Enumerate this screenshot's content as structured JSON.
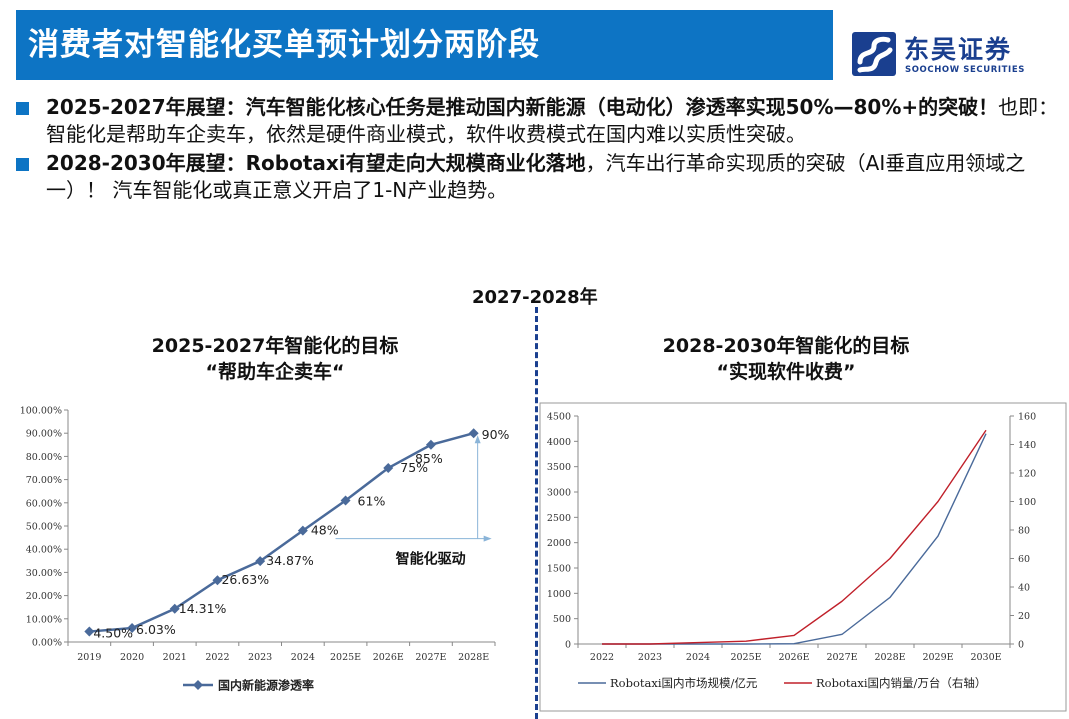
{
  "header": {
    "title": "消费者对智能化买单预计划分两阶段"
  },
  "logo": {
    "cn": "东吴证券",
    "en": "SOOCHOW SECURITIES"
  },
  "bullets": [
    {
      "bold": "2025-2027年展望：汽车智能化核心任务是推动国内新能源（电动化）渗透率实现50%—80%+的突破！",
      "text": "也即：智能化是帮助车企卖车，依然是硬件商业模式，软件收费模式在国内难以实质性突破。"
    },
    {
      "bold": "2028-2030年展望：Robotaxi有望走向大规模商业化落地",
      "text": "，汽车出行革命实现质的突破（AI垂直应用领域之一）！ 汽车智能化或真正意义开启了1-N产业趋势。"
    }
  ],
  "divider_label": "2027-2028年",
  "left_panel": {
    "title_line1": "2025-2027年智能化的目标",
    "title_line2": "“帮助车企卖车“"
  },
  "right_panel": {
    "title_line1": "2028-2030年智能化的目标",
    "title_line2": "“实现软件收费”"
  },
  "chart_data": [
    {
      "type": "line",
      "x": [
        "2019",
        "2020",
        "2021",
        "2022",
        "2023",
        "2024",
        "2025E",
        "2026E",
        "2027E",
        "2028E"
      ],
      "series": [
        {
          "name": "国内新能源渗透率",
          "values": [
            4.5,
            6.03,
            14.31,
            26.63,
            34.87,
            48,
            61,
            75,
            85,
            90
          ],
          "color": "#4a6a9a"
        }
      ],
      "data_labels": [
        "4.50%",
        "6.03%",
        "14.31%",
        "26.63%",
        "34.87%",
        "48%",
        "61%",
        "75%",
        "85%",
        "90%"
      ],
      "y_ticks": [
        "0.00%",
        "10.00%",
        "20.00%",
        "30.00%",
        "40.00%",
        "50.00%",
        "60.00%",
        "70.00%",
        "80.00%",
        "90.00%",
        "100.00%"
      ],
      "ylim": [
        0,
        100
      ],
      "annotation": "智能化驱动",
      "legend": "bottom",
      "grid": false
    },
    {
      "type": "line",
      "x": [
        "2022",
        "2023",
        "2024",
        "2025E",
        "2026E",
        "2027E",
        "2028E",
        "2029E",
        "2030E"
      ],
      "series": [
        {
          "name": "Robotaxi国内市场规模/亿元",
          "axis": "left",
          "values": [
            0,
            0,
            0,
            0,
            5,
            190,
            920,
            2130,
            4150
          ],
          "color": "#4a6a9a"
        },
        {
          "name": "Robotaxi国内销量/万台（右轴）",
          "axis": "right",
          "values": [
            0,
            0,
            1,
            2,
            6,
            30,
            60,
            100,
            150
          ],
          "color": "#c0202a"
        }
      ],
      "y_ticks_left": [
        "0",
        "500",
        "1000",
        "1500",
        "2000",
        "2500",
        "3000",
        "3500",
        "4000",
        "4500"
      ],
      "y_ticks_right": [
        "0",
        "20",
        "40",
        "60",
        "80",
        "100",
        "120",
        "140",
        "160"
      ],
      "ylim_left": [
        0,
        4500
      ],
      "ylim_right": [
        0,
        160
      ],
      "legend": "bottom",
      "grid": false
    }
  ]
}
